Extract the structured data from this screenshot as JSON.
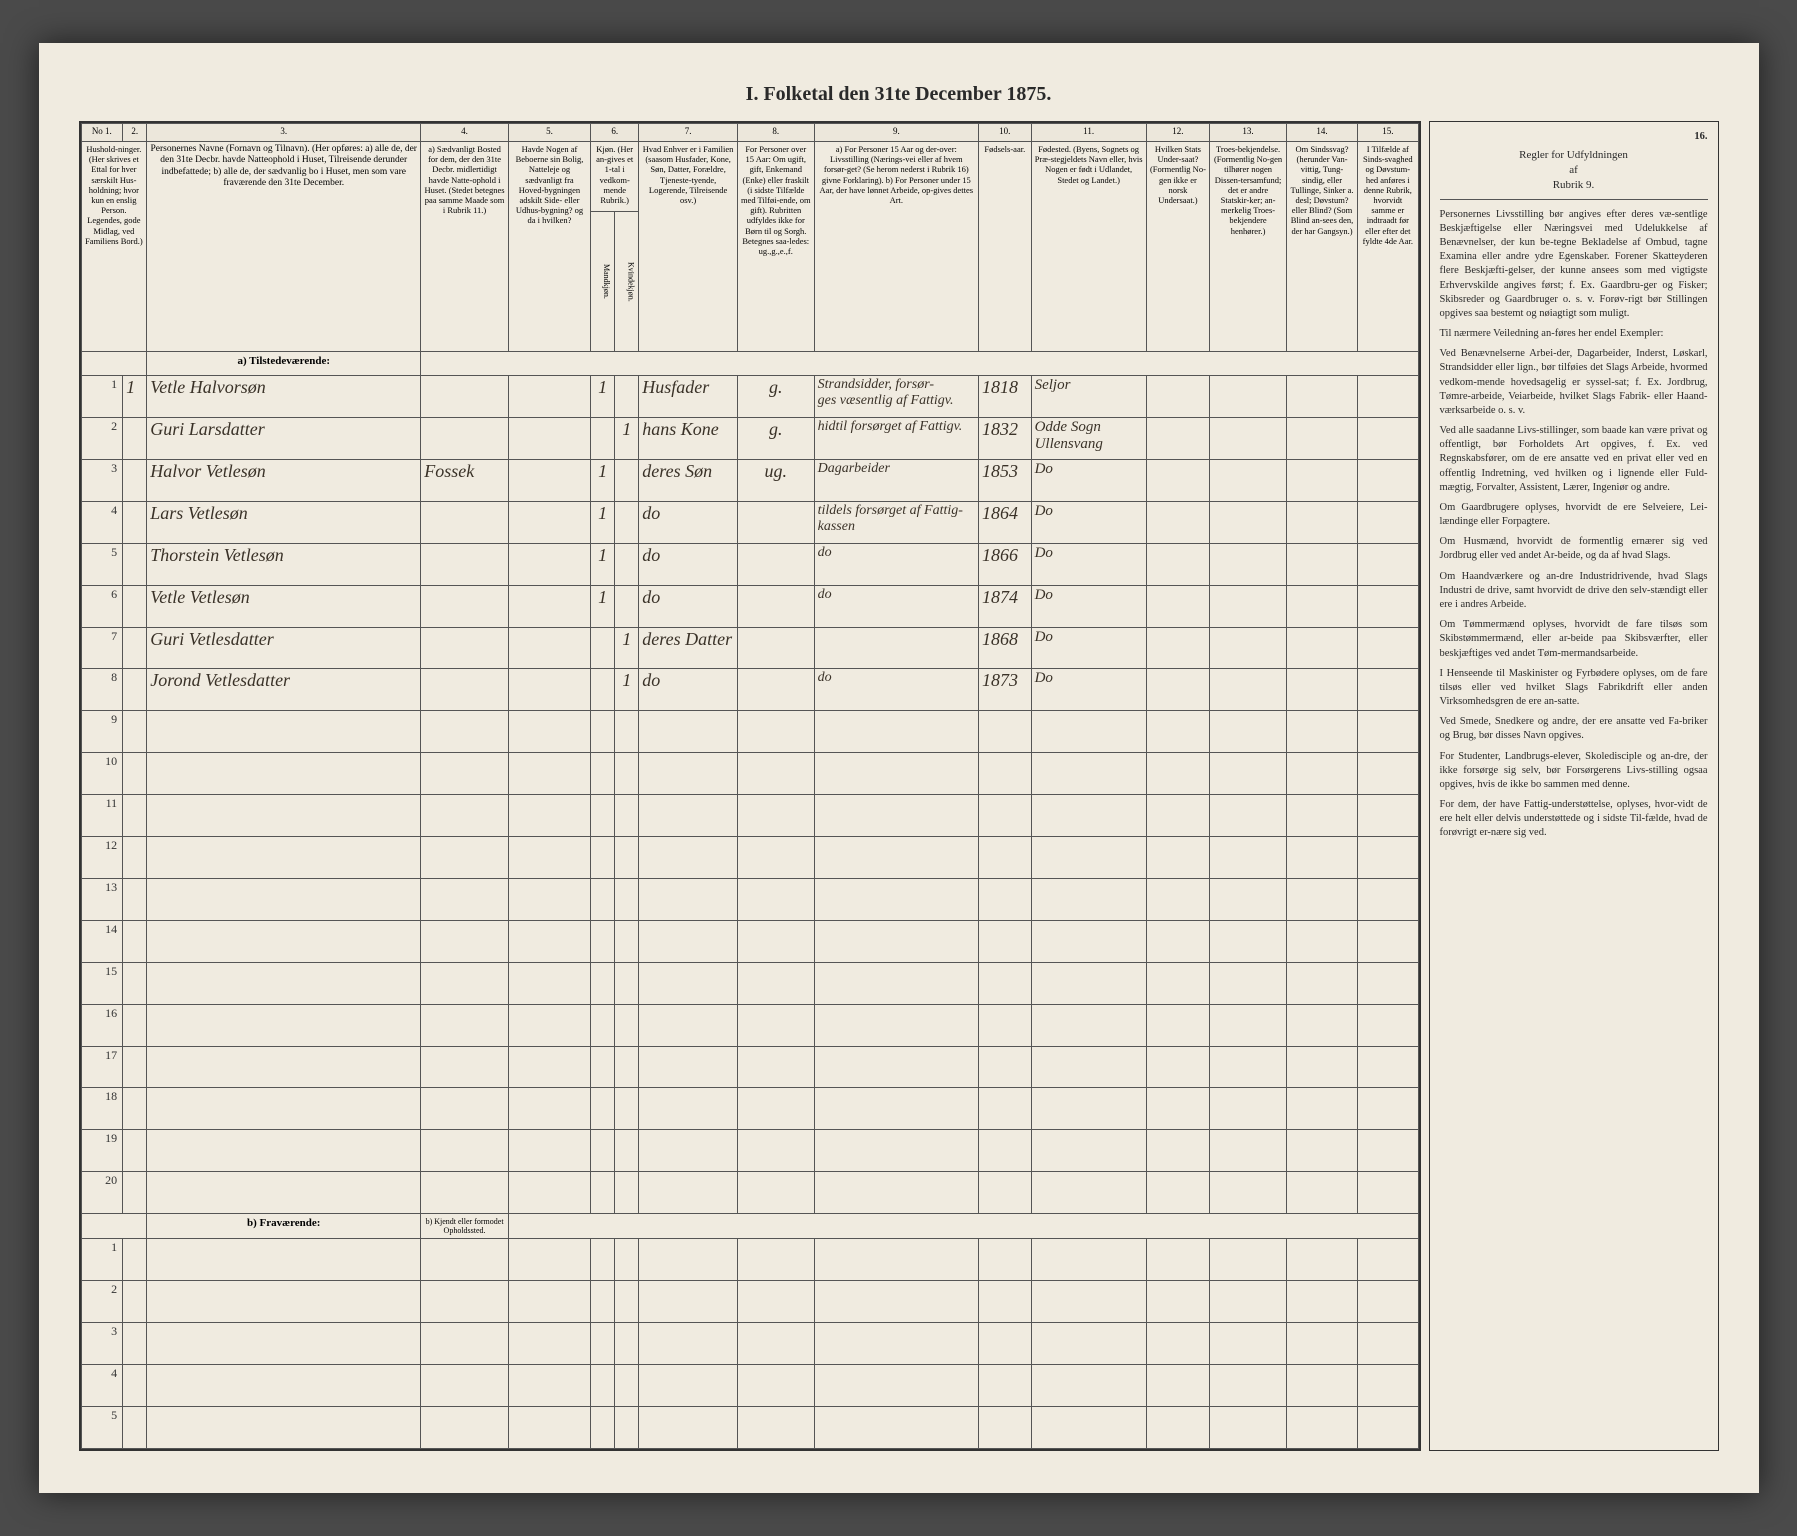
{
  "title": "I. Folketal den 31te December 1875.",
  "columns": {
    "nums": [
      "No 1.",
      "2.",
      "3.",
      "4.",
      "5.",
      "6.",
      "7.",
      "8.",
      "9.",
      "10.",
      "11.",
      "12.",
      "13.",
      "14.",
      "15.",
      "16."
    ],
    "c1": "Hushold-ninger. (Her skrives et Ettal for hver særskilt Hus-holdning; hvor kun en enslig Person. Legendes, gode Midlag, ved Familiens Bord.)",
    "c3": "Personernes Navne (Fornavn og Tilnavn).\n(Her opføres:\na) alle de, der den 31te Decbr. havde Natteophold i Huset, Tilreisende derunder indbefattede;\nb) alle de, der sædvanlig bo i Huset, men som vare fraværende den 31te December.",
    "c4": "a) Sædvanligt Bosted for dem, der den 31te Decbr. midlertidigt havde Natte-ophold i Huset. (Stedet betegnes paa samme Maade som i Rubrik 11.)",
    "c5": "Havde Nogen af Beboerne sin Bolig, Natteleje og sædvanligt fra Hoved-bygningen adskilt Side- eller Udhus-bygning? og da i hvilken?",
    "c6": "Kjøn. (Her an-gives et 1-tal i vedkom-mende Rubrik.)",
    "c6a": "Mandkjøn.",
    "c6b": "Kvindekjøn.",
    "c7": "Hvad Enhver er i Familien (saasom Husfader, Kone, Søn, Datter, Forældre, Tjeneste-tyende, Logerende, Tilreisende osv.)",
    "c8": "For Personer over 15 Aar: Om ugift, gift, Enkemand (Enke) eller fraskilt (i sidste Tilfælde med Tilføi-ende, om gift). Rubritten udfyldes ikke for Børn til og Sorgh. Betegnes saa-ledes: ug.,g.,e.,f.",
    "c9": "a) For Personer 15 Aar og der-over: Livsstilling (Nærings-vei eller af hvem forsør-get? (Se herom nederst i Rubrik 16) givne Forklaring).\nb) For Personer under 15 Aar, der have lønnet Arbeide, op-gives dettes Art.",
    "c10": "Fødsels-aar.",
    "c11": "Fødested.\n(Byens, Sognets og Præ-stegjeldets Navn eller, hvis Nogen er født i Udlandet, Stedet og Landet.)",
    "c12": "Hvilken Stats Under-saat? (Formentlig No-gen ikke er norsk Undersaat.)",
    "c13": "Troes-bekjendelse. (Formentlig No-gen tilhører nogen Dissen-tersamfund; det er andre Statskir-ker; an-merkelig Troes-bekjendere henhører.)",
    "c14": "Om Sindssvag? (herunder Van-vittig, Tung-sindig, eller Tullinge, Sinker a. desl; Døvstum? eller Blind? (Som Blind an-sees den, der har Gangsyn.)",
    "c15": "I Tilfælde af Sinds-svaghed og Døvstum-hed anføres i denne Rubrik, hvorvidt samme er indtraadt før eller efter det fyldte 4de Aar.",
    "c16_head": "Regler for Udfyldningen\naf\nRubrik 9."
  },
  "section_a": "a) Tilstedeværende:",
  "section_b": "b) Fraværende:",
  "section_b_col4": "b) Kjendt eller formodet Opholdssted.",
  "rows": [
    {
      "n": "1",
      "hh": "1",
      "name": "Vetle Halvorsøn",
      "c4": "",
      "c5": "",
      "m": "1",
      "k": "",
      "rel": "Husfader",
      "civ": "g.",
      "occ": "Strandsidder, forsør-\nges væsentlig af Fattigv.",
      "yr": "1818",
      "place": "Seljor"
    },
    {
      "n": "2",
      "hh": "",
      "name": "Guri Larsdatter",
      "c4": "",
      "c5": "",
      "m": "",
      "k": "1",
      "rel": "hans Kone",
      "civ": "g.",
      "occ": "hidtil forsørget af Fattigv.",
      "yr": "1832",
      "place": "Odde Sogn\nUllensvang"
    },
    {
      "n": "3",
      "hh": "",
      "name": "Halvor Vetlesøn",
      "c4": "Fossek",
      "c5": "",
      "m": "1",
      "k": "",
      "rel": "deres Søn",
      "civ": "ug.",
      "occ": "Dagarbeider",
      "yr": "1853",
      "place": "Do"
    },
    {
      "n": "4",
      "hh": "",
      "name": "Lars Vetlesøn",
      "c4": "",
      "c5": "",
      "m": "1",
      "k": "",
      "rel": "do",
      "civ": "",
      "occ": "tildels forsørget af Fattig-\nkassen",
      "yr": "1864",
      "place": "Do"
    },
    {
      "n": "5",
      "hh": "",
      "name": "Thorstein Vetlesøn",
      "c4": "",
      "c5": "",
      "m": "1",
      "k": "",
      "rel": "do",
      "civ": "",
      "occ": "do",
      "yr": "1866",
      "place": "Do"
    },
    {
      "n": "6",
      "hh": "",
      "name": "Vetle Vetlesøn",
      "c4": "",
      "c5": "",
      "m": "1",
      "k": "",
      "rel": "do",
      "civ": "",
      "occ": "do",
      "yr": "1874",
      "place": "Do"
    },
    {
      "n": "7",
      "hh": "",
      "name": "Guri Vetlesdatter",
      "c4": "",
      "c5": "",
      "m": "",
      "k": "1",
      "rel": "deres Datter",
      "civ": "",
      "occ": "",
      "yr": "1868",
      "place": "Do"
    },
    {
      "n": "8",
      "hh": "",
      "name": "Jorond Vetlesdatter",
      "c4": "",
      "c5": "",
      "m": "",
      "k": "1",
      "rel": "do",
      "civ": "",
      "occ": "do",
      "yr": "1873",
      "place": "Do"
    }
  ],
  "empty_rows_a": [
    "9",
    "10",
    "11",
    "12",
    "13",
    "14",
    "15",
    "16",
    "17",
    "18",
    "19",
    "20"
  ],
  "empty_rows_b": [
    "1",
    "2",
    "3",
    "4",
    "5"
  ],
  "sidetext": {
    "p1": "Personernes Livsstilling bør angives efter deres væ-sentlige Beskjæftigelse eller Næringsvei med Udelukkelse af Benævnelser, der kun be-tegne Bekladelse af Ombud, tagne Examina eller andre ydre Egenskaber. Forener Skatteyderen flere Beskjæfti-gelser, der kunne ansees som med vigtigste Erhvervskilde angives først; f. Ex. Gaardbru-ger og Fisker; Skibsreder og Gaardbruger o. s. v. Forøv-rigt bør Stillingen opgives saa bestemt og nøiagtigt som muligt.",
    "p2": "Til nærmere Veiledning an-føres her endel Exempler:",
    "p3": "Ved Benævnelserne Arbei-der, Dagarbeider, Inderst, Løskarl, Strandsidder eller lign., bør tilføies det Slags Arbeide, hvormed vedkom-mende hovedsagelig er syssel-sat; f. Ex. Jordbrug, Tømre-arbeide, Veiarbeide, hvilket Slags Fabrik- eller Haand-værksarbeide o. s. v.",
    "p4": "Ved alle saadanne Livs-stillinger, som baade kan være privat og offentligt, bør Forholdets Art opgives, f. Ex. ved Regnskabsfører, om de ere ansatte ved en privat eller ved en offentlig Indretning, ved hvilken og i lignende eller Fuld-mægtig, Forvalter, Assistent, Lærer, Ingeniør og andre.",
    "p5": "Om Gaardbrugere oplyses, hvorvidt de ere Selveiere, Lei-lændinge eller Forpagtere.",
    "p6": "Om Husmænd, hvorvidt de formentlig ernærer sig ved Jordbrug eller ved andet Ar-beide, og da af hvad Slags.",
    "p7": "Om Haandværkere og an-dre Industridrivende, hvad Slags Industri de drive, samt hvorvidt de drive den selv-stændigt eller ere i andres Arbeide.",
    "p8": "Om Tømmermænd oplyses, hvorvidt de fare tilsøs som Skibstømmermænd, eller ar-beide paa Skibsværfter, eller beskjæftiges ved andet Tøm-mermandsarbeide.",
    "p9": "I Henseende til Maskinister og Fyrbødere oplyses, om de fare tilsøs eller ved hvilket Slags Fabrikdrift eller anden Virksomhedsgren de ere an-satte.",
    "p10": "Ved Smede, Snedkere og andre, der ere ansatte ved Fa-briker og Brug, bør disses Navn opgives.",
    "p11": "For Studenter, Landbrugs-elever, Skoledisciple og an-dre, der ikke forsørge sig selv, bør Forsørgerens Livs-stilling ogsaa opgives, hvis de ikke bo sammen med denne.",
    "p12": "For dem, der have Fattig-understøttelse, oplyses, hvor-vidt de ere helt eller delvis understøttede og i sidste Til-fælde, hvad de forøvrigt er-nære sig ved."
  }
}
